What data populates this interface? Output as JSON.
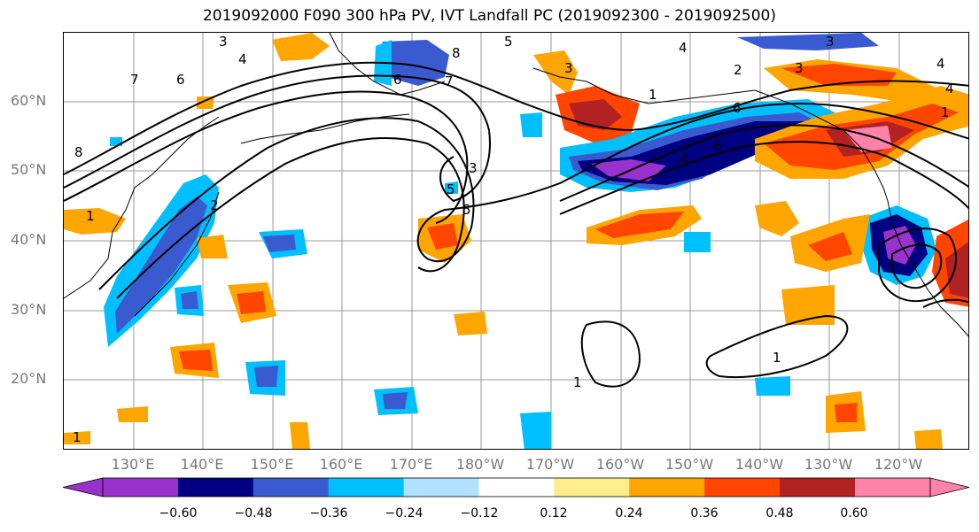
{
  "title": "2019092000 F090 300 hPa PV, IVT Landfall PC (2019092300 - 2019092500)",
  "lat_labels": [
    "60°N",
    "50°N",
    "40°N",
    "30°N",
    "20°N"
  ],
  "lon_labels": [
    "130°E",
    "140°E",
    "150°E",
    "160°E",
    "170°E",
    "180°W",
    "170°W",
    "160°W",
    "150°W",
    "140°W",
    "130°W",
    "120°W"
  ],
  "contour_labels": [
    "3",
    "4",
    "5",
    "6",
    "7",
    "8",
    "8",
    "7",
    "6",
    "6",
    "5",
    "4",
    "3",
    "2",
    "1",
    "1",
    "3",
    "4",
    "5",
    "6",
    "4",
    "3",
    "2",
    "1",
    "1",
    "1",
    "1",
    "3",
    "4"
  ],
  "colorbar": {
    "colors": [
      "#9932cc",
      "#000080",
      "#3a5bcf",
      "#00bfff",
      "#b0e2ff",
      "#ffffff",
      "#ffec8b",
      "#ffa500",
      "#ff4500",
      "#b22222",
      "#ff82ab"
    ],
    "tick_labels": [
      "−0.60",
      "−0.48",
      "−0.36",
      "−0.24",
      "−0.12",
      "0.12",
      "0.24",
      "0.36",
      "0.48",
      "0.60"
    ]
  }
}
